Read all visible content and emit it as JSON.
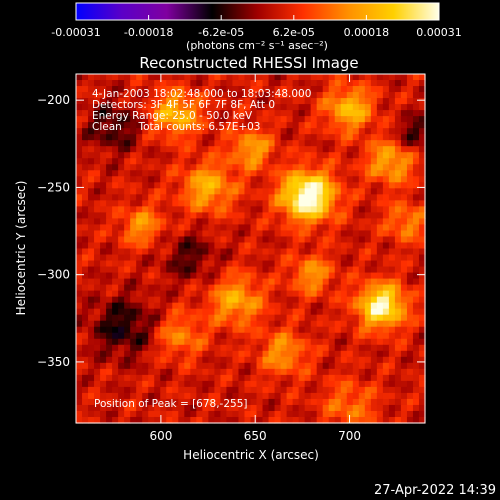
{
  "chart_data": {
    "type": "heatmap",
    "title": "Reconstructed RHESSI Image",
    "xlabel": "Heliocentric X (arcsec)",
    "ylabel": "Heliocentric Y (arcsec)",
    "xlim": [
      555,
      740
    ],
    "ylim": [
      -385,
      -185
    ],
    "x_ticks": [
      600,
      650,
      700
    ],
    "y_ticks": [
      -200,
      -250,
      -300,
      -350
    ],
    "colorbar": {
      "ticks": [
        "-0.00031",
        "-0.00018",
        "-6.2e-05",
        "6.2e-05",
        "0.00018",
        "0.00031"
      ],
      "range": [
        -0.00031,
        0.00031
      ],
      "units_line": "(photons cm⁻² s⁻¹ asec⁻²)",
      "colors": [
        "#0000ff",
        "#5a00c8",
        "#8000a0",
        "#000000",
        "#a00000",
        "#ff3000",
        "#ff9000",
        "#ffd000",
        "#ffffe8"
      ]
    },
    "annotations": [
      "4-Jan-2003 18:02:48.000 to 18:03:48.000",
      "Detectors: 3F 4F 5F 6F 7F 8F, Att 0",
      "Energy Range: 25.0 - 50.0 keV",
      "Clean     Total counts: 6.57E+03"
    ],
    "peak_label": "Position of Peak = [678,-255]",
    "peak": [
      678,
      -255
    ],
    "blobs": [
      {
        "x": 678,
        "y": -255,
        "amp": 1.0,
        "r": 10
      },
      {
        "x": 717,
        "y": -318,
        "amp": 0.85,
        "r": 9
      },
      {
        "x": 700,
        "y": -205,
        "amp": 0.55,
        "r": 9
      },
      {
        "x": 608,
        "y": -208,
        "amp": 0.55,
        "r": 9
      },
      {
        "x": 625,
        "y": -250,
        "amp": 0.5,
        "r": 10
      },
      {
        "x": 648,
        "y": -228,
        "amp": 0.45,
        "r": 8
      },
      {
        "x": 722,
        "y": -235,
        "amp": 0.5,
        "r": 9
      },
      {
        "x": 590,
        "y": -272,
        "amp": 0.4,
        "r": 8
      },
      {
        "x": 640,
        "y": -315,
        "amp": 0.48,
        "r": 10
      },
      {
        "x": 680,
        "y": -300,
        "amp": 0.4,
        "r": 8
      },
      {
        "x": 665,
        "y": -345,
        "amp": 0.4,
        "r": 9
      },
      {
        "x": 610,
        "y": -335,
        "amp": 0.35,
        "r": 9
      },
      {
        "x": 700,
        "y": -375,
        "amp": 0.3,
        "r": 10
      },
      {
        "x": 730,
        "y": -270,
        "amp": 0.35,
        "r": 8
      },
      {
        "x": 575,
        "y": -215,
        "amp": -0.3,
        "r": 10
      },
      {
        "x": 580,
        "y": -330,
        "amp": -0.35,
        "r": 12
      },
      {
        "x": 615,
        "y": -290,
        "amp": -0.25,
        "r": 10
      },
      {
        "x": 735,
        "y": -220,
        "amp": -0.3,
        "r": 8
      }
    ]
  },
  "footer": {
    "timestamp": "27-Apr-2022 14:39"
  }
}
